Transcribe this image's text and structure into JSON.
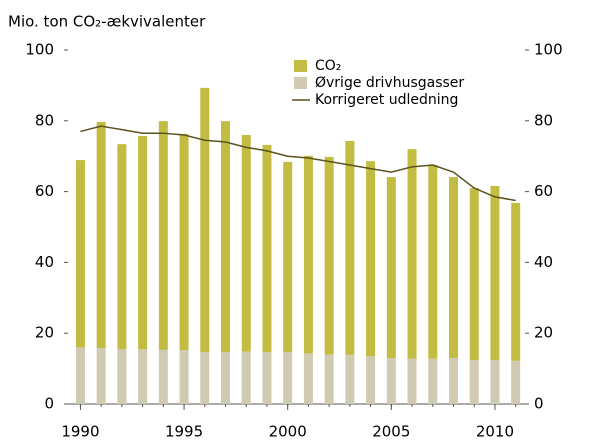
{
  "chart_data": {
    "type": "bar",
    "title": "Mio. ton CO₂-ækvivalenter",
    "x": [
      1990,
      1991,
      1992,
      1993,
      1994,
      1995,
      1996,
      1997,
      1998,
      1999,
      2000,
      2001,
      2002,
      2003,
      2004,
      2005,
      2006,
      2007,
      2008,
      2009,
      2010,
      2011
    ],
    "xlim": [
      1989.4,
      2011.45
    ],
    "xticks": [
      1990,
      1995,
      2000,
      2005,
      2010
    ],
    "ylim": [
      0,
      100
    ],
    "yticks": [
      0,
      20,
      40,
      60,
      80,
      100
    ],
    "y2lim": [
      0,
      100
    ],
    "y2ticks": [
      0,
      20,
      40,
      60,
      80,
      100
    ],
    "stacked": true,
    "series": [
      {
        "name": "CO₂",
        "color": "#c3bc42",
        "values": [
          52.9,
          63.9,
          57.9,
          60.2,
          64.6,
          61.1,
          74.6,
          65.2,
          61.2,
          58.5,
          53.8,
          55.8,
          55.8,
          60.4,
          55.1,
          51.1,
          59.2,
          54.7,
          51.1,
          48.6,
          49.2,
          44.6
        ]
      },
      {
        "name": "Øvrige drivhusgasser",
        "color": "#d0cab2",
        "values": [
          16,
          15.8,
          15.5,
          15.5,
          15.3,
          15.2,
          14.7,
          14.7,
          14.8,
          14.7,
          14.6,
          14.3,
          14.0,
          13.9,
          13.5,
          13,
          12.8,
          12.8,
          13,
          12.4,
          12.4,
          12.2
        ]
      },
      {
        "name": "Korrigeret udledning",
        "color": "#5a5320",
        "type": "line",
        "values": [
          77,
          78.5,
          77.5,
          76.5,
          76.5,
          76,
          74.5,
          74,
          72.5,
          71.5,
          70,
          69.5,
          68.5,
          67.5,
          66.5,
          65.5,
          67,
          67.5,
          65.5,
          61,
          58.5,
          57.5
        ]
      }
    ]
  }
}
